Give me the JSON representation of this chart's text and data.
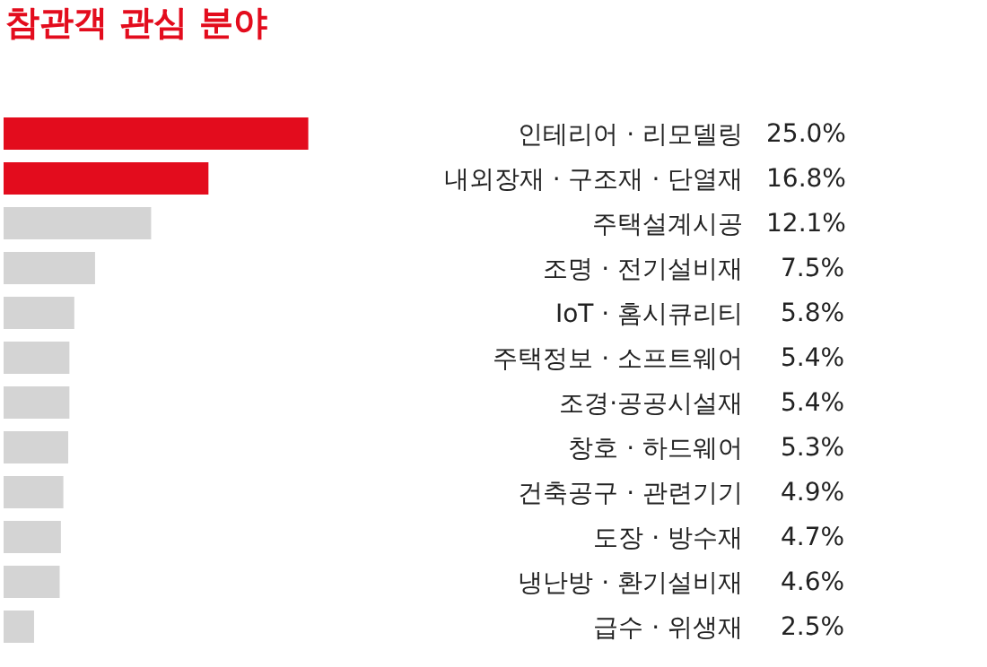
{
  "chart_data": {
    "type": "bar",
    "orientation": "horizontal",
    "title": "참관객 관심 분야",
    "categories": [
      "인테리어 · 리모델링",
      "내외장재 · 구조재 · 단열재",
      "주택설계시공",
      "조명 · 전기설비재",
      "IoT · 홈시큐리티",
      "주택정보 · 소프트웨어",
      "조경·공공시설재",
      "창호 · 하드웨어",
      "건축공구 · 관련기기",
      "도장 · 방수재",
      "냉난방 · 환기설비재",
      "급수 · 위생재"
    ],
    "values": [
      25.0,
      16.8,
      12.1,
      7.5,
      5.8,
      5.4,
      5.4,
      5.3,
      4.9,
      4.7,
      4.6,
      2.5
    ],
    "colors": [
      "#e30c1d",
      "#e30c1d",
      "#d4d4d4",
      "#d4d4d4",
      "#d4d4d4",
      "#d4d4d4",
      "#d4d4d4",
      "#d4d4d4",
      "#d4d4d4",
      "#d4d4d4",
      "#d4d4d4",
      "#d4d4d4"
    ],
    "value_labels": [
      "25.0%",
      "16.8%",
      "12.1%",
      "7.5%",
      "5.8%",
      "5.4%",
      "5.4%",
      "5.3%",
      "4.9%",
      "4.7%",
      "4.6%",
      "2.5%"
    ]
  }
}
